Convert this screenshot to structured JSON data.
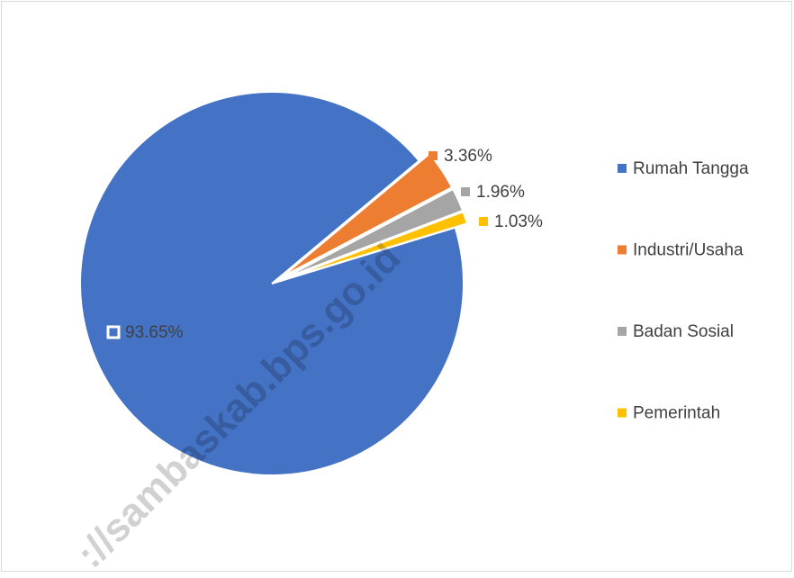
{
  "chart_data": {
    "type": "pie",
    "categories": [
      "Rumah Tangga",
      "Industri/Usaha",
      "Badan Sosial",
      "Pemerintah"
    ],
    "values": [
      93.65,
      3.36,
      1.96,
      1.03
    ],
    "value_labels": [
      "93.65%",
      "3.36%",
      "1.96%",
      "1.03%"
    ],
    "colors": [
      "#4472c4",
      "#ed7d31",
      "#a5a5a5",
      "#ffc000"
    ],
    "legend": "right",
    "watermark": "://sambaskab.bps.go.id"
  }
}
